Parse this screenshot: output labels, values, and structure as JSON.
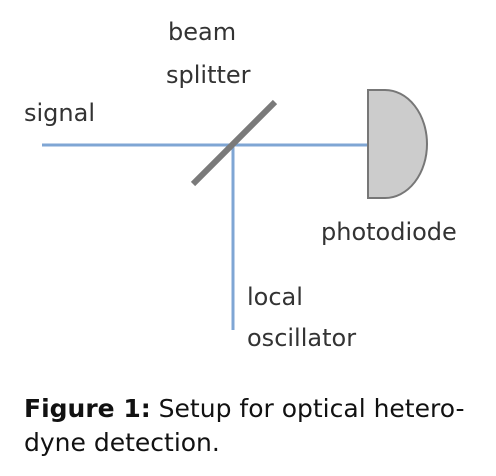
{
  "diagram": {
    "labels": {
      "beam_splitter_line1": "beam",
      "beam_splitter_line2": "splitter",
      "signal": "signal",
      "photodiode": "photodiode",
      "local_oscillator_line1": "local",
      "local_oscillator_line2": "oscillator"
    },
    "colors": {
      "beam": "#7fa6d4",
      "splitter": "#7a7a7a",
      "detector_fill": "#cccccc",
      "detector_stroke": "#777777"
    }
  },
  "caption": {
    "label": "Figure 1:",
    "text_line1": " Setup for optical hetero-",
    "text_line2": "dyne detection."
  }
}
